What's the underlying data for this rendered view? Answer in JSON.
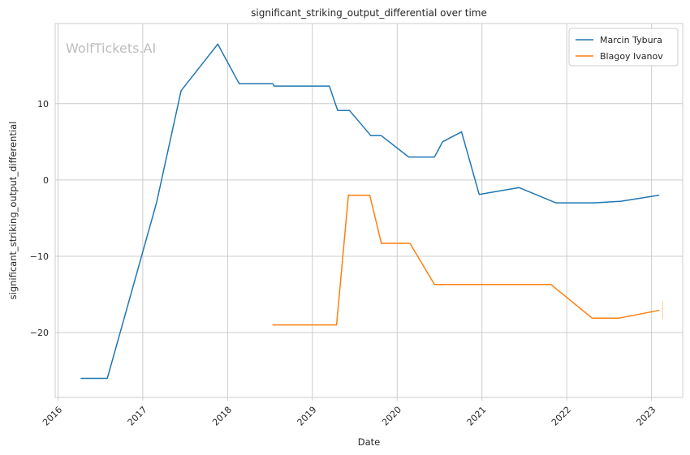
{
  "chart_data": {
    "type": "line",
    "title": "significant_striking_output_differential over time",
    "xlabel": "Date",
    "ylabel": "significant_striking_output_differential",
    "watermark": "WolfTickets.AI",
    "x_ticks": [
      "2016",
      "2017",
      "2018",
      "2019",
      "2020",
      "2021",
      "2022",
      "2023"
    ],
    "y_ticks": [
      -20,
      -10,
      0,
      10
    ],
    "y_tick_labels": [
      "−20",
      "−10",
      "0",
      "10"
    ],
    "xlim": [
      "2015-12-20",
      "2023-05-15"
    ],
    "ylim": [
      -28.5,
      20.5
    ],
    "grid": true,
    "legend_position": "top-right",
    "series": [
      {
        "name": "Marcin Tybura",
        "color": "#1f77b4",
        "points": [
          [
            "2016-04-10",
            -26.0
          ],
          [
            "2016-08-01",
            -26.0
          ],
          [
            "2017-03-01",
            -3.0
          ],
          [
            "2017-06-15",
            11.7
          ],
          [
            "2017-11-20",
            17.8
          ],
          [
            "2018-02-20",
            12.6
          ],
          [
            "2018-07-15",
            12.6
          ],
          [
            "2018-07-20",
            12.3
          ],
          [
            "2019-03-15",
            12.3
          ],
          [
            "2019-04-20",
            9.1
          ],
          [
            "2019-06-10",
            9.1
          ],
          [
            "2019-09-10",
            5.8
          ],
          [
            "2019-10-25",
            5.8
          ],
          [
            "2020-02-20",
            3.0
          ],
          [
            "2020-06-10",
            3.0
          ],
          [
            "2020-07-15",
            5.0
          ],
          [
            "2020-10-05",
            6.3
          ],
          [
            "2020-12-20",
            -1.9
          ],
          [
            "2021-06-10",
            -1.0
          ],
          [
            "2021-11-15",
            -3.0
          ],
          [
            "2022-05-01",
            -3.0
          ],
          [
            "2022-08-20",
            -2.8
          ],
          [
            "2023-02-01",
            -2.0
          ]
        ]
      },
      {
        "name": "Blagoy Ivanov",
        "color": "#ff7f0e",
        "points": [
          [
            "2018-07-15",
            -19.0
          ],
          [
            "2019-04-15",
            -19.0
          ],
          [
            "2019-06-05",
            -2.0
          ],
          [
            "2019-09-05",
            -2.0
          ],
          [
            "2019-10-25",
            -8.3
          ],
          [
            "2020-02-25",
            -8.3
          ],
          [
            "2020-06-10",
            -13.7
          ],
          [
            "2021-10-25",
            -13.7
          ],
          [
            "2022-04-20",
            -18.1
          ],
          [
            "2022-08-15",
            -18.1
          ],
          [
            "2023-02-01",
            -17.1
          ]
        ]
      }
    ]
  }
}
